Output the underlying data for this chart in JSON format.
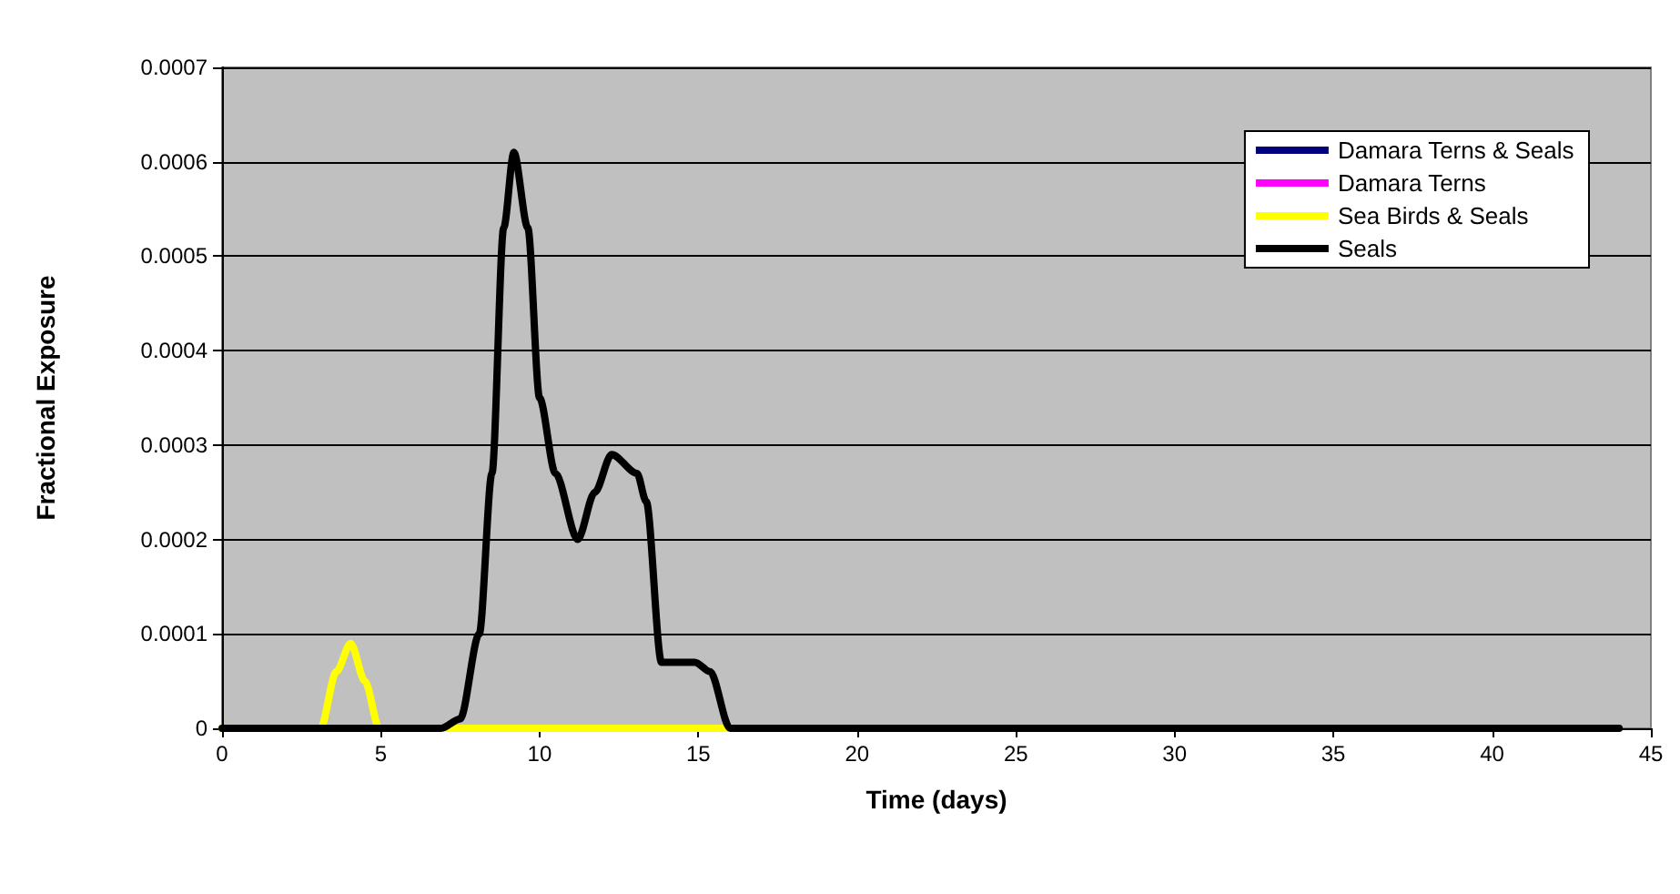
{
  "chart_data": {
    "type": "line",
    "xlabel": "Time (days)",
    "ylabel": "Fractional Exposure",
    "xlim": [
      0,
      45
    ],
    "xticks": [
      0,
      5,
      10,
      15,
      20,
      25,
      30,
      35,
      40,
      45
    ],
    "ylim": [
      0,
      0.0007
    ],
    "yticks": [
      0,
      0.0001,
      0.0002,
      0.0003,
      0.0004,
      0.0005,
      0.0006,
      0.0007
    ],
    "grid": "y",
    "legend": "top right",
    "marker": "none",
    "line_style": "solid",
    "series": [
      {
        "name": "Damara Terns & Seals",
        "color": "#000080"
      },
      {
        "name": "Damara Terns",
        "color": "#ff00ff"
      },
      {
        "name": "Sea Birds & Seals",
        "color": "#ffff00",
        "x": [
          0,
          2.8,
          3.1,
          3.6,
          4.05,
          4.5,
          4.95,
          6,
          10,
          16
        ],
        "values": [
          0,
          0,
          0,
          6e-05,
          9e-05,
          5e-05,
          0,
          0,
          0,
          0
        ]
      },
      {
        "name": "Seals",
        "color": "#000000",
        "x": [
          0,
          6.2,
          6.9,
          7.5,
          8.1,
          8.5,
          8.87,
          9.19,
          9.63,
          10.0,
          10.5,
          11.2,
          11.74,
          12.27,
          13.07,
          13.36,
          13.84,
          14.89,
          15.37,
          16.0,
          16.6,
          20,
          44
        ],
        "values": [
          0,
          0,
          0,
          1e-05,
          0.0001,
          0.00027,
          0.00053,
          0.00061,
          0.00053,
          0.00035,
          0.00027,
          0.0002,
          0.00025,
          0.00029,
          0.00027,
          0.00024,
          7e-05,
          7e-05,
          6e-05,
          0,
          0,
          0,
          0
        ]
      }
    ]
  }
}
